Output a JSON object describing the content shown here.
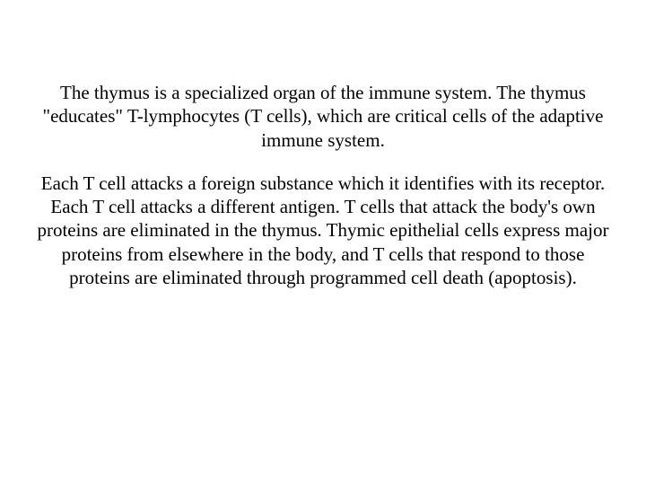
{
  "document": {
    "background_color": "#ffffff",
    "text_color": "#000000",
    "font_family": "Times New Roman",
    "font_size_pt": 16,
    "alignment": "center",
    "paragraphs": [
      "The thymus is a specialized organ of the immune system. The thymus \"educates\" T-lymphocytes (T cells), which are critical cells of the adaptive immune system.",
      "Each T cell attacks a foreign substance which it identifies with its receptor. Each T cell attacks a different antigen. T cells that attack the body's own proteins are eliminated in the thymus. Thymic epithelial cells express major proteins from elsewhere in the body, and T cells that respond to those proteins are eliminated through programmed cell death (apoptosis)."
    ]
  }
}
